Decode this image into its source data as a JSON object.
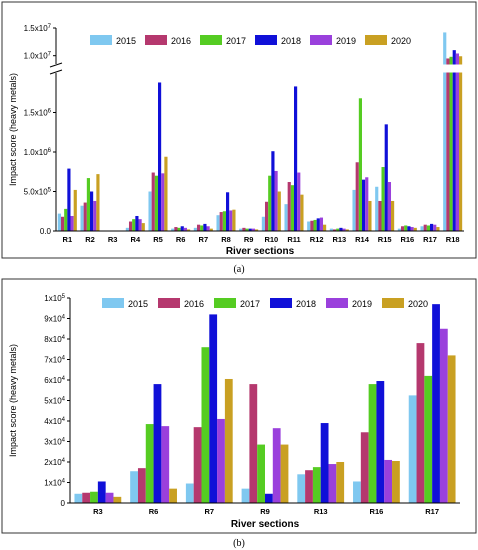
{
  "chart_data": [
    {
      "type": "bar",
      "panel_label": "(a)",
      "xlabel": "River sections",
      "ylabel": "Impact score (heavy metals)",
      "categories": [
        "R1",
        "R2",
        "R3",
        "R4",
        "R5",
        "R6",
        "R7",
        "R8",
        "R9",
        "R10",
        "R11",
        "R12",
        "R13",
        "R14",
        "R15",
        "R16",
        "R17",
        "R18"
      ],
      "y_axis_break": true,
      "lower_ticks": [
        "0.0",
        "5.0x10^5",
        "1.0x10^6",
        "1.5x10^6"
      ],
      "upper_ticks": [
        "1.0x10^7",
        "1.5x10^7"
      ],
      "legend_position": "top",
      "series": [
        {
          "name": "2015",
          "color": "#7fc8f0",
          "values": [
            220000,
            320000,
            5000,
            40000,
            500000,
            30000,
            40000,
            200000,
            30000,
            180000,
            340000,
            120000,
            30000,
            520000,
            560000,
            30000,
            60000,
            14200000
          ]
        },
        {
          "name": "2016",
          "color": "#b5386e",
          "values": [
            180000,
            360000,
            5000,
            120000,
            740000,
            50000,
            80000,
            240000,
            40000,
            370000,
            620000,
            130000,
            20000,
            870000,
            380000,
            60000,
            80000,
            9500000
          ]
        },
        {
          "name": "2017",
          "color": "#55cc22",
          "values": [
            280000,
            670000,
            5000,
            150000,
            700000,
            40000,
            70000,
            250000,
            30000,
            700000,
            580000,
            140000,
            30000,
            1680000,
            810000,
            70000,
            70000,
            9800000
          ]
        },
        {
          "name": "2018",
          "color": "#1010d8",
          "values": [
            790000,
            500000,
            5000,
            190000,
            1880000,
            60000,
            90000,
            490000,
            30000,
            1010000,
            1830000,
            160000,
            40000,
            650000,
            1350000,
            60000,
            90000,
            11000000
          ]
        },
        {
          "name": "2019",
          "color": "#9a40dc",
          "values": [
            190000,
            380000,
            5000,
            150000,
            730000,
            40000,
            60000,
            260000,
            30000,
            760000,
            740000,
            170000,
            30000,
            680000,
            620000,
            50000,
            80000,
            10400000
          ]
        },
        {
          "name": "2020",
          "color": "#c9a022",
          "values": [
            520000,
            720000,
            5000,
            100000,
            940000,
            20000,
            30000,
            270000,
            20000,
            500000,
            460000,
            80000,
            20000,
            380000,
            380000,
            40000,
            50000,
            9900000
          ]
        }
      ]
    },
    {
      "type": "bar",
      "panel_label": "(b)",
      "xlabel": "River sections",
      "ylabel": "Impact score (heavy metals)",
      "categories": [
        "R3",
        "R6",
        "R7",
        "R9",
        "R13",
        "R16",
        "R17"
      ],
      "ylim": [
        0,
        100000
      ],
      "yticks": [
        "0",
        "1x10^4",
        "2x10^4",
        "3x10^4",
        "4x10^4",
        "5x10^4",
        "6x10^4",
        "7x10^4",
        "8x10^4",
        "9x10^4",
        "1x10^5"
      ],
      "legend_position": "top",
      "series": [
        {
          "name": "2015",
          "color": "#7fc8f0",
          "values": [
            4500,
            15500,
            9500,
            7000,
            14000,
            10500,
            52500
          ]
        },
        {
          "name": "2016",
          "color": "#b5386e",
          "values": [
            5000,
            17000,
            37000,
            58000,
            16000,
            34500,
            78000
          ]
        },
        {
          "name": "2017",
          "color": "#55cc22",
          "values": [
            5500,
            38500,
            76000,
            28500,
            17500,
            58000,
            62000
          ]
        },
        {
          "name": "2018",
          "color": "#1010d8",
          "values": [
            10500,
            58000,
            92000,
            4500,
            39000,
            59500,
            97000
          ]
        },
        {
          "name": "2019",
          "color": "#9a40dc",
          "values": [
            5000,
            37500,
            41000,
            36500,
            19000,
            21000,
            85000
          ]
        },
        {
          "name": "2020",
          "color": "#c9a022",
          "values": [
            3000,
            7000,
            60500,
            28500,
            20000,
            20500,
            72000
          ]
        }
      ]
    }
  ]
}
